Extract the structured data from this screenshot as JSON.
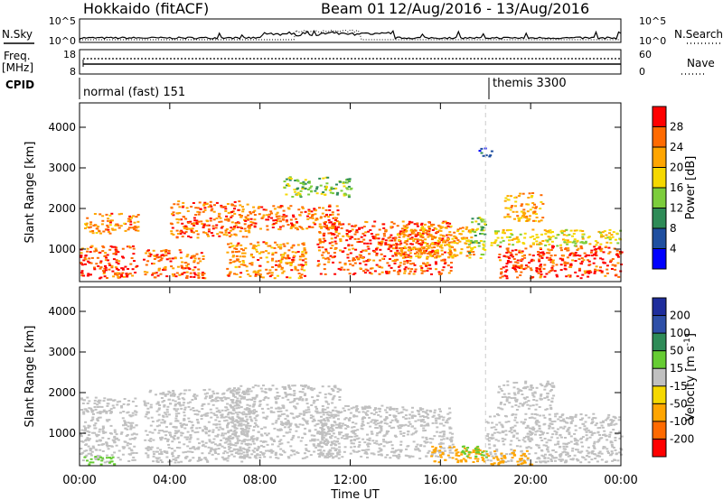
{
  "header": {
    "title": "Hokkaido (fitACF)",
    "beam": "Beam 01",
    "date_range": "12/Aug/2016 - 13/Aug/2016"
  },
  "nsky": {
    "label": "N.Sky",
    "ticks": [
      "10^5",
      "10^0"
    ],
    "right_ticks": [
      "10^5",
      "10^0"
    ],
    "right_label": "N.Search"
  },
  "freq": {
    "label_line1": "Freq.",
    "label_line2": "[MHz]",
    "ticks": [
      "18",
      "8"
    ],
    "right_ticks": [
      "60",
      "0"
    ],
    "right_label": "Nave"
  },
  "cpid": {
    "label": "CPID",
    "segments": [
      {
        "name": "normal (fast) 151",
        "start_hour": 0
      },
      {
        "name": "themis 3300",
        "start_hour": 18
      }
    ]
  },
  "time_axis": {
    "label": "Time UT",
    "ticks": [
      "00:00",
      "04:00",
      "08:00",
      "12:00",
      "16:00",
      "20:00",
      "00:00"
    ]
  },
  "chart_data": [
    {
      "type": "heatmap",
      "quantity": "power",
      "ylabel": "Slant Range [km]",
      "xlabel": "",
      "xlim_hours": [
        0,
        24
      ],
      "ylim": [
        200,
        4600
      ],
      "yticks": [
        1000,
        2000,
        3000,
        4000
      ],
      "colorbar": {
        "label": "Power [dB]",
        "ticks": [
          4,
          8,
          12,
          16,
          20,
          24,
          28
        ],
        "colors": [
          "#0000ff",
          "#1f4fa0",
          "#2e8b57",
          "#7ccd3c",
          "#f5d800",
          "#ffa500",
          "#ff6a00",
          "#ff0000"
        ]
      },
      "echo_regions": [
        {
          "x0": 0.0,
          "x1": 2.5,
          "y0": 300,
          "y1": 1100,
          "level": 28
        },
        {
          "x0": 0.2,
          "x1": 2.6,
          "y0": 1400,
          "y1": 1900,
          "level": 24
        },
        {
          "x0": 2.8,
          "x1": 5.5,
          "y0": 300,
          "y1": 1000,
          "level": 26
        },
        {
          "x0": 4.0,
          "x1": 7.5,
          "y0": 1300,
          "y1": 2200,
          "level": 26
        },
        {
          "x0": 6.5,
          "x1": 10.0,
          "y0": 300,
          "y1": 1200,
          "level": 24
        },
        {
          "x0": 7.5,
          "x1": 11.5,
          "y0": 1500,
          "y1": 2100,
          "level": 26
        },
        {
          "x0": 10.5,
          "x1": 16.5,
          "y0": 400,
          "y1": 1700,
          "level": 27
        },
        {
          "x0": 14.0,
          "x1": 17.5,
          "y0": 800,
          "y1": 1600,
          "level": 22
        },
        {
          "x0": 17.2,
          "x1": 18.0,
          "y0": 800,
          "y1": 1800,
          "level": 14
        },
        {
          "x0": 18.5,
          "x1": 24.0,
          "y0": 300,
          "y1": 1100,
          "level": 28
        },
        {
          "x0": 18.2,
          "x1": 24.0,
          "y0": 1100,
          "y1": 1500,
          "level": 18
        },
        {
          "x0": 18.8,
          "x1": 20.5,
          "y0": 1700,
          "y1": 2400,
          "level": 22
        },
        {
          "x0": 9.0,
          "x1": 12.0,
          "y0": 2300,
          "y1": 2800,
          "level": 14
        },
        {
          "x0": 17.6,
          "x1": 18.3,
          "y0": 3300,
          "y1": 3500,
          "level": 6
        }
      ]
    },
    {
      "type": "heatmap",
      "quantity": "velocity",
      "ylabel": "Slant Range [km]",
      "xlabel": "Time UT",
      "xlim_hours": [
        0,
        24
      ],
      "ylim": [
        200,
        4600
      ],
      "yticks": [
        1000,
        2000,
        3000,
        4000
      ],
      "colorbar": {
        "label": "Velocity [m s^-1]",
        "ticks": [
          200,
          100,
          50,
          15,
          -15,
          -50,
          -100,
          -200
        ],
        "colors": [
          "#1e2d9c",
          "#2e4fa8",
          "#2e8b57",
          "#66cc33",
          "#c0c0c0",
          "#f5d800",
          "#ffa500",
          "#ff6a00",
          "#ff0000"
        ]
      },
      "echo_regions": [
        {
          "x0": 0.0,
          "x1": 2.5,
          "y0": 300,
          "y1": 1900,
          "level": 0
        },
        {
          "x0": 0.0,
          "x1": 1.5,
          "y0": 250,
          "y1": 450,
          "level": 30
        },
        {
          "x0": 2.8,
          "x1": 7.5,
          "y0": 300,
          "y1": 2100,
          "level": 0
        },
        {
          "x0": 6.5,
          "x1": 11.5,
          "y0": 400,
          "y1": 2200,
          "level": 0
        },
        {
          "x0": 10.5,
          "x1": 16.5,
          "y0": 400,
          "y1": 1700,
          "level": 0
        },
        {
          "x0": 15.5,
          "x1": 18.0,
          "y0": 300,
          "y1": 700,
          "level": -60
        },
        {
          "x0": 16.8,
          "x1": 18.0,
          "y0": 400,
          "y1": 700,
          "level": 40
        },
        {
          "x0": 18.0,
          "x1": 24.0,
          "y0": 300,
          "y1": 1500,
          "level": 0
        },
        {
          "x0": 18.5,
          "x1": 21.0,
          "y0": 1600,
          "y1": 2300,
          "level": 0
        },
        {
          "x0": 18.0,
          "x1": 20.0,
          "y0": 250,
          "y1": 600,
          "level": -60
        }
      ]
    }
  ]
}
